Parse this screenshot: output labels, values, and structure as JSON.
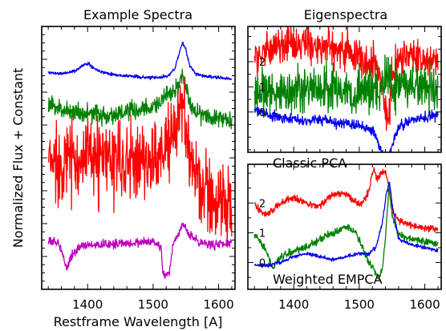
{
  "figure": {
    "ylabel": "Normalized Flux + Constant",
    "xlabel": "Restframe Wavelength [A]"
  },
  "colors": {
    "blue": "#0000ee",
    "green": "#008000",
    "red": "#ff0000",
    "magenta": "#bf00bf"
  },
  "chart_data": [
    {
      "type": "line",
      "title": "Example Spectra",
      "xlabel": "Restframe Wavelength [A]",
      "ylabel": "Normalized Flux + Constant",
      "xlim": [
        1330,
        1625
      ],
      "ylim": [
        0,
        10
      ],
      "xticks": [
        1400,
        1500,
        1600
      ],
      "yticks": [],
      "series": [
        {
          "color": "#0000ee",
          "noise": 0.03,
          "seed": 11,
          "x": [
            1340,
            1360,
            1380,
            1395,
            1402,
            1410,
            1425,
            1445,
            1470,
            1495,
            1510,
            1525,
            1533,
            1540,
            1545,
            1550,
            1556,
            1565,
            1580,
            1600,
            1620
          ],
          "y": [
            8.25,
            8.2,
            8.3,
            8.55,
            8.6,
            8.4,
            8.25,
            8.15,
            8.1,
            8.05,
            8.05,
            8.15,
            8.4,
            9.0,
            9.4,
            9.1,
            8.5,
            8.2,
            8.1,
            8.05,
            8.0
          ]
        },
        {
          "color": "#008000",
          "noise": 0.18,
          "seed": 23,
          "x": [
            1340,
            1370,
            1400,
            1430,
            1460,
            1490,
            1510,
            1525,
            1535,
            1540,
            1545,
            1550,
            1558,
            1570,
            1590,
            1620
          ],
          "y": [
            7.0,
            6.8,
            6.7,
            6.6,
            6.75,
            6.85,
            7.1,
            7.4,
            7.6,
            7.9,
            8.1,
            7.6,
            7.0,
            6.7,
            6.6,
            6.4
          ]
        },
        {
          "color": "#ff0000",
          "noise": 0.75,
          "seed": 37,
          "x": [
            1340,
            1380,
            1420,
            1460,
            1500,
            1520,
            1530,
            1540,
            1545,
            1552,
            1560,
            1575,
            1600,
            1620
          ],
          "y": [
            4.8,
            5.0,
            4.9,
            4.8,
            5.0,
            5.3,
            5.8,
            6.5,
            7.0,
            6.0,
            4.5,
            3.8,
            3.3,
            3.1
          ]
        },
        {
          "color": "#bf00bf",
          "noise": 0.08,
          "seed": 53,
          "x": [
            1340,
            1355,
            1362,
            1368,
            1375,
            1390,
            1420,
            1460,
            1500,
            1512,
            1515,
            1525,
            1530,
            1540,
            1545,
            1555,
            1570,
            1590,
            1620
          ],
          "y": [
            1.8,
            1.8,
            1.4,
            0.75,
            1.3,
            1.65,
            1.7,
            1.75,
            1.8,
            1.6,
            0.6,
            0.6,
            1.7,
            2.1,
            2.5,
            2.1,
            1.8,
            1.7,
            1.75
          ]
        }
      ]
    },
    {
      "type": "line",
      "title": "Eigenspectra",
      "annotation": "Classic PCA",
      "xlim": [
        1330,
        1625
      ],
      "ylim": [
        -1.6,
        3.4
      ],
      "yticks": [
        0,
        1,
        2
      ],
      "series": [
        {
          "color": "#ff0000",
          "noise": 0.35,
          "seed": 71,
          "x": [
            1340,
            1380,
            1420,
            1460,
            1490,
            1510,
            1525,
            1535,
            1540,
            1545,
            1550,
            1560,
            1580,
            1600,
            1620
          ],
          "y": [
            2.2,
            2.6,
            2.7,
            2.6,
            2.4,
            2.1,
            1.9,
            1.2,
            0.2,
            -0.2,
            1.5,
            2.0,
            2.3,
            2.1,
            2.0
          ]
        },
        {
          "color": "#008000",
          "noise": 0.45,
          "seed": 83,
          "x": [
            1340,
            1380,
            1420,
            1460,
            1500,
            1530,
            1540,
            1545,
            1550,
            1570,
            1600,
            1620
          ],
          "y": [
            0.7,
            0.8,
            0.8,
            0.9,
            0.9,
            1.0,
            1.3,
            1.5,
            1.0,
            1.0,
            0.9,
            0.9
          ]
        },
        {
          "color": "#0000ee",
          "noise": 0.1,
          "seed": 97,
          "x": [
            1340,
            1360,
            1380,
            1400,
            1440,
            1480,
            1510,
            1525,
            1535,
            1541,
            1547,
            1555,
            1565,
            1580,
            1600,
            1620
          ],
          "y": [
            0.1,
            -0.1,
            -0.25,
            -0.3,
            -0.3,
            -0.45,
            -0.6,
            -0.9,
            -1.7,
            -2.4,
            -1.6,
            -0.9,
            -0.5,
            -0.3,
            -0.2,
            -0.1
          ]
        }
      ]
    },
    {
      "type": "line",
      "annotation": "Weighted EMPCA",
      "xlim": [
        1330,
        1625
      ],
      "ylim": [
        -0.9,
        3.3
      ],
      "xticks": [
        1400,
        1500,
        1600
      ],
      "yticks": [
        0,
        1,
        2
      ],
      "series": [
        {
          "color": "#ff0000",
          "noise": 0.06,
          "seed": 101,
          "x": [
            1340,
            1355,
            1365,
            1380,
            1400,
            1420,
            1440,
            1460,
            1480,
            1495,
            1505,
            1515,
            1522,
            1527,
            1533,
            1540,
            1545,
            1550,
            1560,
            1575,
            1590,
            1620
          ],
          "y": [
            2.0,
            1.6,
            1.7,
            2.0,
            2.2,
            2.0,
            1.9,
            2.3,
            2.3,
            2.0,
            2.0,
            2.4,
            3.2,
            2.8,
            3.0,
            3.1,
            2.6,
            1.7,
            1.4,
            1.3,
            1.2,
            1.1
          ]
        },
        {
          "color": "#008000",
          "noise": 0.06,
          "seed": 113,
          "x": [
            1340,
            1350,
            1360,
            1368,
            1380,
            1400,
            1420,
            1440,
            1460,
            1480,
            1495,
            1505,
            1515,
            1525,
            1530,
            1535,
            1540,
            1545,
            1550,
            1560,
            1580,
            1620
          ],
          "y": [
            0.9,
            0.7,
            0.3,
            -0.2,
            0.2,
            0.4,
            0.5,
            0.8,
            1.0,
            1.2,
            1.0,
            0.5,
            0.0,
            -0.3,
            -0.6,
            -0.2,
            0.8,
            2.5,
            1.6,
            0.9,
            0.8,
            0.6
          ]
        },
        {
          "color": "#0000ee",
          "noise": 0.03,
          "seed": 127,
          "x": [
            1340,
            1360,
            1380,
            1400,
            1420,
            1440,
            1460,
            1480,
            1500,
            1515,
            1525,
            1535,
            1541,
            1546,
            1550,
            1560,
            1580,
            1600,
            1620
          ],
          "y": [
            -0.1,
            -0.1,
            0.0,
            0.2,
            0.3,
            0.2,
            0.1,
            0.2,
            0.3,
            0.3,
            0.5,
            1.3,
            2.3,
            2.7,
            2.0,
            0.8,
            0.6,
            0.5,
            0.4
          ]
        }
      ]
    }
  ]
}
